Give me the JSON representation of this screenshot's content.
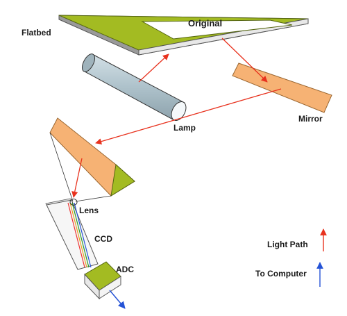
{
  "labels": {
    "flatbed": "Flatbed",
    "original": "Original",
    "lamp": "Lamp",
    "mirror": "Mirror",
    "lens": "Lens",
    "ccd": "CCD",
    "adc": "ADC"
  },
  "legend": {
    "light_path": "Light Path",
    "to_computer": "To Computer"
  },
  "colors": {
    "green": "#a3bb22",
    "green_dark": "#7d9318",
    "orange": "#f6b274",
    "orange_dark": "#e49a55",
    "lamp": "#aec2cb",
    "light_path": "#e8321e",
    "to_computer": "#2553d6"
  }
}
